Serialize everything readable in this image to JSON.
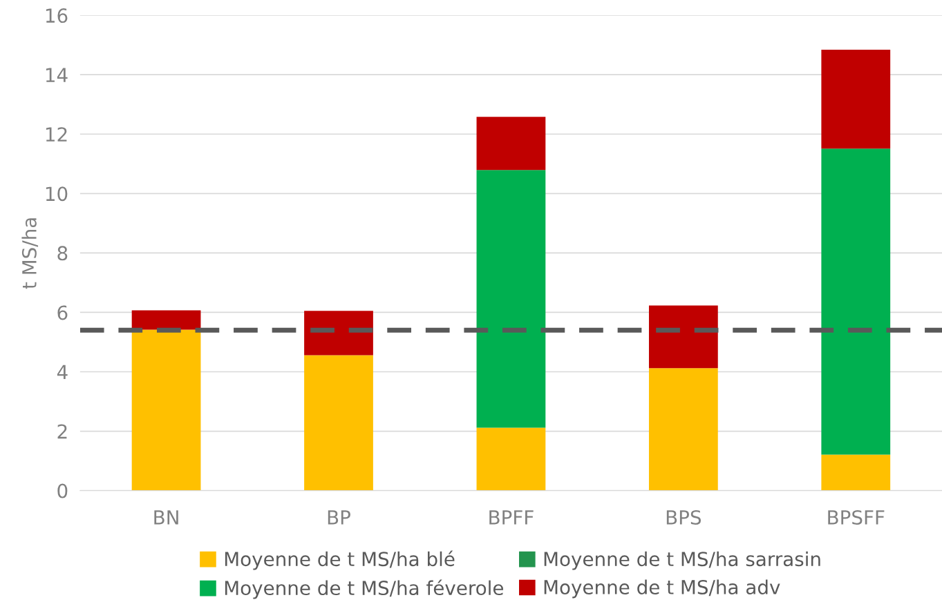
{
  "chart_data": {
    "type": "bar",
    "stacked": true,
    "ylabel": "t MS/ha",
    "categories": [
      "BN",
      "BP",
      "BPFF",
      "BPS",
      "BPSFF"
    ],
    "series": [
      {
        "name": "Moyenne de t MS/ha blé",
        "color": "#ffc000",
        "values": [
          5.42,
          4.56,
          2.12,
          4.12,
          1.21
        ]
      },
      {
        "name": "Moyenne de t MS/ha féverole",
        "color": "#00b050",
        "values": [
          0,
          0,
          8.67,
          0,
          10.3
        ]
      },
      {
        "name": "Moyenne de t MS/ha sarrasin",
        "color": "#23944e",
        "values": [
          0,
          0,
          0,
          0,
          0
        ]
      },
      {
        "name": "Moyenne de t MS/ha adv",
        "color": "#c00000",
        "values": [
          0.65,
          1.49,
          1.79,
          2.11,
          3.33
        ]
      }
    ],
    "ylim": [
      0,
      16
    ],
    "yticks": [
      0,
      2,
      4,
      6,
      8,
      10,
      12,
      14,
      16
    ],
    "grid": "y",
    "legend": "bottom",
    "ref_lines": [
      {
        "axis": "y",
        "value": 5.4,
        "color": "#595959",
        "line_style": "dashed"
      }
    ]
  }
}
